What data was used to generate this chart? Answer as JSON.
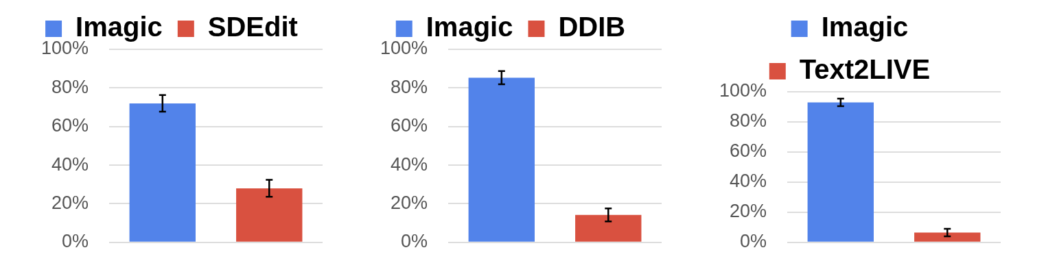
{
  "chart_data": [
    {
      "type": "bar",
      "categories": [
        null
      ],
      "series": [
        {
          "name": "Imagic",
          "color": "#5283ea",
          "values": [
            72
          ],
          "errors": [
            4.3
          ]
        },
        {
          "name": "SDEdit",
          "color": "#d95140",
          "values": [
            28
          ],
          "errors": [
            4.4
          ]
        }
      ],
      "ylim": [
        0,
        100
      ],
      "yticks": [
        {
          "value": 0,
          "label": "0%"
        },
        {
          "value": 20,
          "label": "20%"
        },
        {
          "value": 40,
          "label": "40%"
        },
        {
          "value": 60,
          "label": "60%"
        },
        {
          "value": 80,
          "label": "80%"
        },
        {
          "value": 100,
          "label": "100%"
        }
      ],
      "grid": "y",
      "legend": "top"
    },
    {
      "type": "bar",
      "categories": [
        null
      ],
      "series": [
        {
          "name": "Imagic",
          "color": "#5283ea",
          "values": [
            85.3
          ],
          "errors": [
            3.4
          ]
        },
        {
          "name": "DDIB",
          "color": "#d95140",
          "values": [
            14.2
          ],
          "errors": [
            3.4
          ]
        }
      ],
      "ylim": [
        0,
        100
      ],
      "yticks": [
        {
          "value": 0,
          "label": "0%"
        },
        {
          "value": 20,
          "label": "20%"
        },
        {
          "value": 40,
          "label": "40%"
        },
        {
          "value": 60,
          "label": "60%"
        },
        {
          "value": 80,
          "label": "80%"
        },
        {
          "value": 100,
          "label": "100%"
        }
      ],
      "grid": "y",
      "legend": "top"
    },
    {
      "type": "bar",
      "categories": [
        null
      ],
      "series": [
        {
          "name": "Imagic",
          "color": "#5283ea",
          "values": [
            93
          ],
          "errors": [
            2.5
          ]
        },
        {
          "name": "Text2LIVE",
          "color": "#d95140",
          "values": [
            6.5
          ],
          "errors": [
            2.5
          ]
        }
      ],
      "ylim": [
        0,
        100
      ],
      "yticks": [
        {
          "value": 0,
          "label": "0%"
        },
        {
          "value": 20,
          "label": "20%"
        },
        {
          "value": 40,
          "label": "40%"
        },
        {
          "value": 60,
          "label": "60%"
        },
        {
          "value": 80,
          "label": "80%"
        },
        {
          "value": 100,
          "label": "100%"
        }
      ],
      "grid": "y",
      "legend": "top"
    }
  ]
}
